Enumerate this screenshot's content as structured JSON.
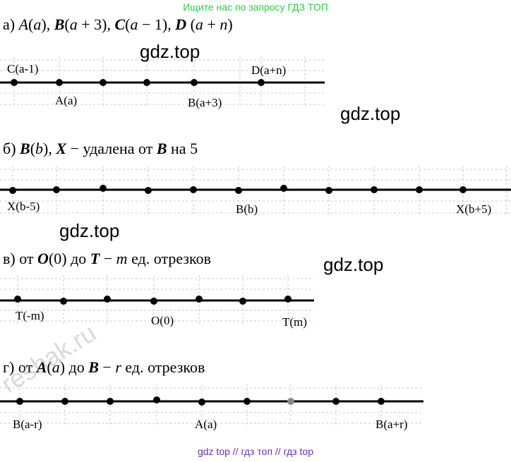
{
  "banner": "Ищите нас по запросу ГДЗ ТОП",
  "footer": "gdz top  //  гдз топ  //  гдз top",
  "watermarks": {
    "w1": "gdz.top",
    "w2": "gdz.top",
    "w3": "gdz.top",
    "w4": "gdz.top",
    "reshak": "reshak.ru"
  },
  "sections": {
    "a": {
      "prefix": "а)",
      "labels": {
        "c": "C(a-1)",
        "a": "A(a)",
        "b": "B(a+3)",
        "d": "D(a+n)"
      }
    },
    "b": {
      "prefix": "б)",
      "labels": {
        "x1": "X(b-5)",
        "b": "B(b)",
        "x2": "X(b+5)"
      }
    },
    "c": {
      "prefix": "в)",
      "labels": {
        "t1": "T(-m)",
        "o": "O(0)",
        "t2": "T(m)"
      }
    },
    "d": {
      "prefix": "г)",
      "labels": {
        "b": "B(a-r)",
        "a": "A(a)",
        "b2": "B(a+r)"
      }
    }
  },
  "colors": {
    "banner": "#2ecc40",
    "footer": "#6a2fb0",
    "grid": "#c8c8c8",
    "axis": "#000000"
  }
}
